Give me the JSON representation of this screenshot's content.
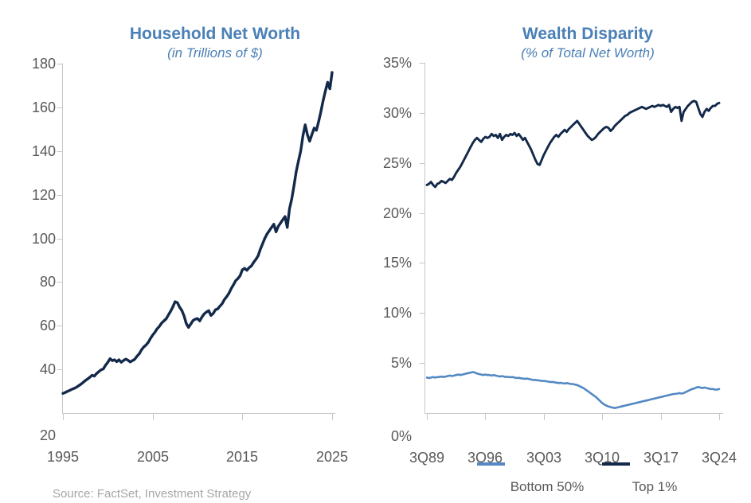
{
  "page": {
    "source_note": "Source: FactSet, Investment Strategy"
  },
  "colors": {
    "title_blue": "#4a80b6",
    "dark_navy": "#13294a",
    "light_blue": "#5389c3",
    "axis_gray": "#c8c8c8",
    "tick_label_gray": "#595959",
    "source_gray": "#a6a6a6"
  },
  "chart_data": [
    {
      "type": "line",
      "title": "Household Net Worth",
      "subtitle": "(in Trillions of $)",
      "xlabel": "",
      "ylabel": "",
      "grid": false,
      "legend_position": "none",
      "ylim": [
        20,
        180
      ],
      "xlim": [
        1995,
        2025
      ],
      "x_start_year": 1995,
      "x_step_years": 0.25,
      "yticks": [
        "180",
        "160",
        "140",
        "120",
        "100",
        "80",
        "60",
        "40",
        "20"
      ],
      "xticks": [
        "1995",
        "2005",
        "2015",
        "2025"
      ],
      "xtick_years": [
        1995,
        2005,
        2015,
        2025
      ],
      "series": [
        {
          "name": "Household Net Worth",
          "color": "#13294a",
          "values": [
            29.0,
            29.4,
            29.9,
            30.4,
            30.9,
            31.3,
            31.8,
            32.5,
            33.2,
            34.0,
            34.9,
            35.6,
            36.4,
            37.3,
            36.9,
            38.1,
            39.0,
            39.8,
            40.2,
            41.9,
            43.2,
            44.9,
            44.0,
            44.4,
            43.5,
            44.4,
            43.3,
            44.1,
            44.7,
            44.2,
            43.4,
            44.0,
            44.6,
            46.0,
            47.1,
            48.9,
            50.2,
            51.1,
            52.3,
            54.1,
            55.7,
            57.0,
            58.6,
            59.7,
            61.2,
            62.2,
            63.1,
            64.9,
            66.6,
            68.6,
            71.0,
            70.6,
            68.5,
            67.0,
            64.5,
            61.0,
            59.2,
            60.8,
            62.4,
            63.0,
            63.3,
            62.2,
            64.0,
            65.4,
            66.3,
            66.9,
            64.7,
            65.6,
            67.3,
            67.7,
            69.0,
            70.1,
            72.0,
            73.3,
            74.8,
            77.0,
            78.7,
            80.6,
            81.6,
            82.9,
            85.6,
            86.3,
            85.4,
            86.6,
            87.3,
            89.0,
            90.3,
            92.0,
            95.0,
            97.5,
            100.0,
            102.0,
            103.5,
            105.0,
            106.5,
            103.0,
            105.5,
            107.0,
            108.5,
            110.0,
            105.0,
            113.5,
            118.0,
            124.0,
            130.5,
            135.5,
            140.0,
            147.0,
            152.0,
            147.5,
            144.5,
            147.5,
            150.5,
            149.5,
            153.5,
            158.0,
            163.0,
            167.5,
            171.5,
            168.5,
            176.0
          ]
        }
      ]
    },
    {
      "type": "line",
      "title": "Wealth Disparity",
      "subtitle": "(% of Total Net Worth)",
      "xlabel": "",
      "ylabel": "",
      "grid": false,
      "legend_position": "bottom",
      "ylim": [
        0,
        35
      ],
      "xlim": [
        1989.5,
        2024.5
      ],
      "x_start_year": 1989.5,
      "x_step_years": 0.25,
      "yticks": [
        "35%",
        "30%",
        "25%",
        "20%",
        "15%",
        "10%",
        "5%",
        "0%"
      ],
      "xticks": [
        "3Q89",
        "3Q96",
        "3Q03",
        "3Q10",
        "3Q17",
        "3Q24"
      ],
      "xtick_years": [
        1989.5,
        1996.5,
        2003.5,
        2010.5,
        2017.5,
        2024.5
      ],
      "legend": [
        {
          "label": "Bottom 50%",
          "color": "#5389c3"
        },
        {
          "label": "Top 1%",
          "color": "#13294a"
        }
      ],
      "series": [
        {
          "name": "Bottom 50%",
          "color": "#5389c3",
          "values": [
            3.55,
            3.5,
            3.55,
            3.6,
            3.55,
            3.6,
            3.6,
            3.65,
            3.6,
            3.65,
            3.7,
            3.75,
            3.7,
            3.75,
            3.8,
            3.85,
            3.8,
            3.85,
            3.9,
            3.95,
            4.0,
            4.05,
            4.1,
            4.05,
            3.95,
            3.9,
            3.85,
            3.8,
            3.85,
            3.8,
            3.8,
            3.75,
            3.8,
            3.75,
            3.7,
            3.65,
            3.7,
            3.65,
            3.6,
            3.62,
            3.58,
            3.6,
            3.55,
            3.5,
            3.52,
            3.48,
            3.45,
            3.42,
            3.45,
            3.4,
            3.35,
            3.3,
            3.32,
            3.28,
            3.25,
            3.2,
            3.22,
            3.18,
            3.15,
            3.1,
            3.12,
            3.08,
            3.05,
            3.0,
            3.02,
            2.98,
            2.95,
            3.0,
            2.95,
            2.9,
            2.9,
            2.85,
            2.8,
            2.7,
            2.6,
            2.5,
            2.35,
            2.2,
            2.05,
            1.9,
            1.75,
            1.6,
            1.4,
            1.2,
            1.0,
            0.85,
            0.75,
            0.65,
            0.6,
            0.55,
            0.5,
            0.55,
            0.6,
            0.65,
            0.7,
            0.75,
            0.8,
            0.85,
            0.9,
            0.95,
            1.0,
            1.05,
            1.1,
            1.15,
            1.2,
            1.25,
            1.3,
            1.35,
            1.4,
            1.45,
            1.5,
            1.55,
            1.6,
            1.65,
            1.7,
            1.75,
            1.8,
            1.85,
            1.9,
            1.92,
            1.95,
            2.0,
            1.95,
            2.0,
            2.1,
            2.2,
            2.3,
            2.4,
            2.45,
            2.55,
            2.6,
            2.55,
            2.5,
            2.55,
            2.5,
            2.45,
            2.4,
            2.4,
            2.35,
            2.35,
            2.4
          ]
        },
        {
          "name": "Top 1%",
          "color": "#13294a",
          "values": [
            22.8,
            22.9,
            23.1,
            22.8,
            22.6,
            22.9,
            23.0,
            23.2,
            23.1,
            23.0,
            23.2,
            23.4,
            23.3,
            23.6,
            24.0,
            24.3,
            24.6,
            25.0,
            25.4,
            25.8,
            26.2,
            26.6,
            27.0,
            27.3,
            27.5,
            27.3,
            27.1,
            27.4,
            27.6,
            27.5,
            27.6,
            27.9,
            27.7,
            27.8,
            27.5,
            27.9,
            27.3,
            27.6,
            27.8,
            27.7,
            27.9,
            27.8,
            28.0,
            27.7,
            27.9,
            27.6,
            27.3,
            27.5,
            27.1,
            26.7,
            26.3,
            25.8,
            25.3,
            24.9,
            24.8,
            25.3,
            25.8,
            26.2,
            26.6,
            27.0,
            27.3,
            27.6,
            27.8,
            27.6,
            27.9,
            28.1,
            28.3,
            28.1,
            28.4,
            28.6,
            28.8,
            29.0,
            29.2,
            28.9,
            28.6,
            28.3,
            28.0,
            27.7,
            27.5,
            27.3,
            27.4,
            27.6,
            27.9,
            28.1,
            28.3,
            28.5,
            28.6,
            28.5,
            28.2,
            28.4,
            28.7,
            28.9,
            29.1,
            29.3,
            29.5,
            29.7,
            29.8,
            30.0,
            30.1,
            30.2,
            30.3,
            30.4,
            30.5,
            30.6,
            30.5,
            30.4,
            30.5,
            30.6,
            30.7,
            30.6,
            30.7,
            30.8,
            30.7,
            30.8,
            30.7,
            30.6,
            30.8,
            30.1,
            30.4,
            30.6,
            30.5,
            30.6,
            29.2,
            30.1,
            30.4,
            30.7,
            30.9,
            31.1,
            31.2,
            31.1,
            30.5,
            29.9,
            29.6,
            30.1,
            30.4,
            30.2,
            30.5,
            30.7,
            30.7,
            30.9,
            31.0
          ]
        }
      ]
    }
  ]
}
